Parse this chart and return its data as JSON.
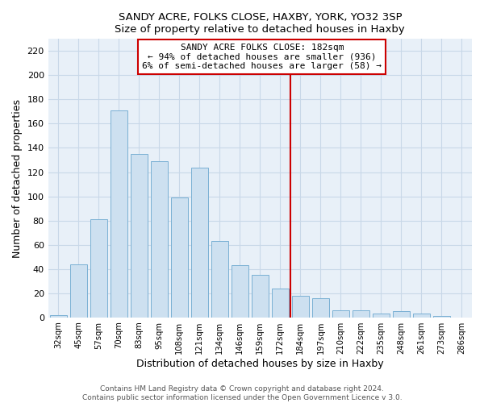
{
  "title": "SANDY ACRE, FOLKS CLOSE, HAXBY, YORK, YO32 3SP",
  "subtitle": "Size of property relative to detached houses in Haxby",
  "xlabel": "Distribution of detached houses by size in Haxby",
  "ylabel": "Number of detached properties",
  "bar_color": "#cde0f0",
  "bar_edge_color": "#7ab0d4",
  "categories": [
    "32sqm",
    "45sqm",
    "57sqm",
    "70sqm",
    "83sqm",
    "95sqm",
    "108sqm",
    "121sqm",
    "134sqm",
    "146sqm",
    "159sqm",
    "172sqm",
    "184sqm",
    "197sqm",
    "210sqm",
    "222sqm",
    "235sqm",
    "248sqm",
    "261sqm",
    "273sqm",
    "286sqm"
  ],
  "values": [
    2,
    44,
    81,
    171,
    135,
    129,
    99,
    124,
    63,
    43,
    35,
    24,
    18,
    16,
    6,
    6,
    3,
    5,
    3,
    1,
    0
  ],
  "vline_color": "#cc0000",
  "ylim": [
    0,
    230
  ],
  "yticks": [
    0,
    20,
    40,
    60,
    80,
    100,
    120,
    140,
    160,
    180,
    200,
    220
  ],
  "annotation_title": "SANDY ACRE FOLKS CLOSE: 182sqm",
  "annotation_line1": "← 94% of detached houses are smaller (936)",
  "annotation_line2": "6% of semi-detached houses are larger (58) →",
  "footer1": "Contains HM Land Registry data © Crown copyright and database right 2024.",
  "footer2": "Contains public sector information licensed under the Open Government Licence v 3.0.",
  "background_color": "#ffffff",
  "plot_bg_color": "#e8f0f8",
  "grid_color": "#c8d8e8"
}
